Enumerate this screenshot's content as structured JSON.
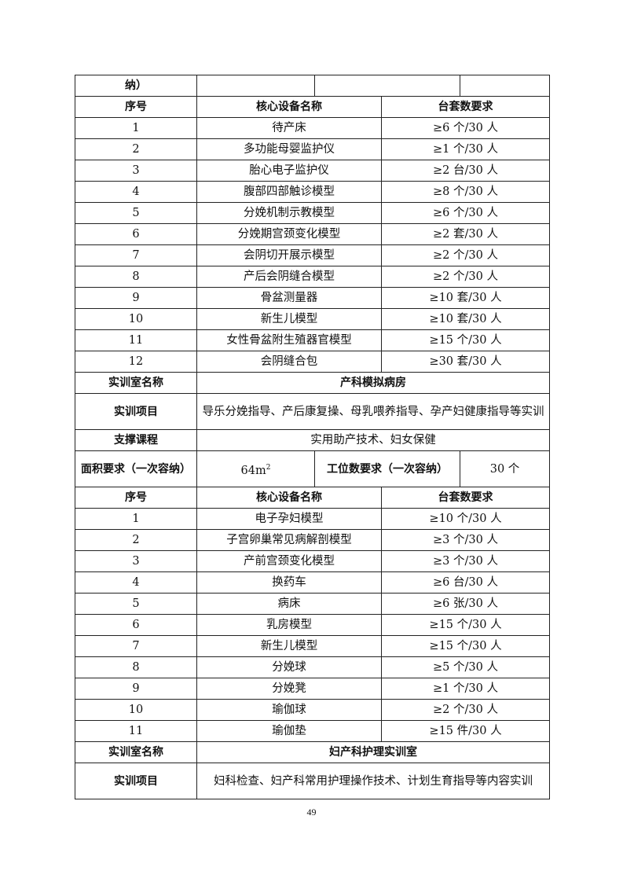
{
  "top_continuation": {
    "area_label_tail": "纳）"
  },
  "section1": {
    "headers": [
      "序号",
      "核心设备名称",
      "台套数要求"
    ],
    "items": [
      {
        "no": "1",
        "name": "待产床",
        "qty": "≥6 个/30 人"
      },
      {
        "no": "2",
        "name": "多功能母婴监护仪",
        "qty": "≥1 个/30 人"
      },
      {
        "no": "3",
        "name": "胎心电子监护仪",
        "qty": "≥2 台/30 人"
      },
      {
        "no": "4",
        "name": "腹部四部触诊模型",
        "qty": "≥8 个/30 人"
      },
      {
        "no": "5",
        "name": "分娩机制示教模型",
        "qty": "≥6 个/30 人"
      },
      {
        "no": "6",
        "name": "分娩期宫颈变化模型",
        "qty": "≥2 套/30 人"
      },
      {
        "no": "7",
        "name": "会阴切开展示模型",
        "qty": "≥2 个/30 人"
      },
      {
        "no": "8",
        "name": "产后会阴缝合模型",
        "qty": "≥2 个/30 人"
      },
      {
        "no": "9",
        "name": "骨盆测量器",
        "qty": "≥10 套/30 人"
      },
      {
        "no": "10",
        "name": "新生儿模型",
        "qty": "≥10 套/30 人"
      },
      {
        "no": "11",
        "name": "女性骨盆附生殖器官模型",
        "qty": "≥15 个/30 人"
      },
      {
        "no": "12",
        "name": "会阴缝合包",
        "qty": "≥30 套/30 人"
      }
    ]
  },
  "room2": {
    "room_name_label": "实训室名称",
    "room_name": "产科模拟病房",
    "project_label": "实训项目",
    "project": "导乐分娩指导、产后康复操、母乳喂养指导、孕产妇健康指导等实训",
    "course_label": "支撑课程",
    "course": "实用助产技术、妇女保健",
    "area_label": "面积要求（一次容纳）",
    "area_value": "64m",
    "area_sup": "2",
    "station_label": "工位数要求（一次容纳）",
    "station_value": "30 个",
    "headers": [
      "序号",
      "核心设备名称",
      "台套数要求"
    ],
    "items": [
      {
        "no": "1",
        "name": "电子孕妇模型",
        "qty": "≥10 个/30 人"
      },
      {
        "no": "2",
        "name": "子宫卵巢常见病解剖模型",
        "qty": "≥3 个/30 人"
      },
      {
        "no": "3",
        "name": "产前宫颈变化模型",
        "qty": "≥3 个/30 人"
      },
      {
        "no": "4",
        "name": "换药车",
        "qty": "≥6 台/30 人"
      },
      {
        "no": "5",
        "name": "病床",
        "qty": "≥6 张/30 人"
      },
      {
        "no": "6",
        "name": "乳房模型",
        "qty": "≥15 个/30 人"
      },
      {
        "no": "7",
        "name": "新生儿模型",
        "qty": "≥15 个/30 人"
      },
      {
        "no": "8",
        "name": "分娩球",
        "qty": "≥5 个/30 人"
      },
      {
        "no": "9",
        "name": "分娩凳",
        "qty": "≥1 个/30 人"
      },
      {
        "no": "10",
        "name": "瑜伽球",
        "qty": "≥2 个/30 人"
      },
      {
        "no": "11",
        "name": "瑜伽垫",
        "qty": "≥15 件/30 人"
      }
    ]
  },
  "room3": {
    "room_name_label": "实训室名称",
    "room_name": "妇产科护理实训室",
    "project_label": "实训项目",
    "project": "妇科检查、妇产科常用护理操作技术、计划生育指导等内容实训"
  },
  "page_number": "49"
}
